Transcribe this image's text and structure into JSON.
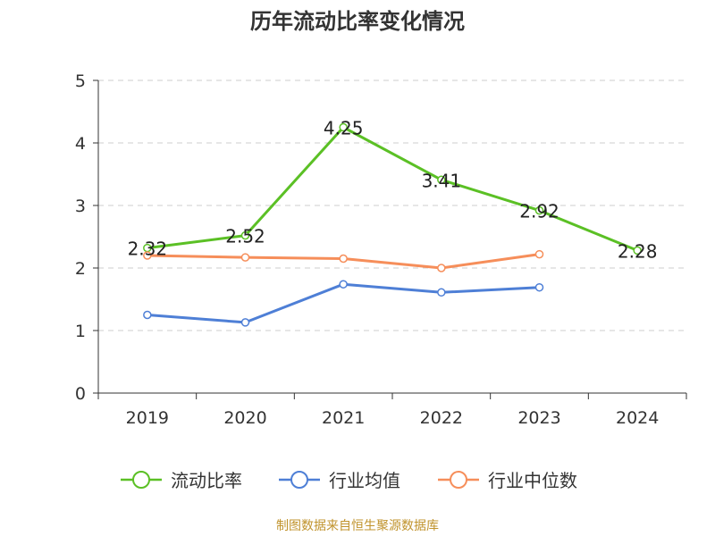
{
  "chart_data": {
    "type": "line",
    "title": "历年流动比率变化情况",
    "categories": [
      "2019",
      "2020",
      "2021",
      "2022",
      "2023",
      "2024"
    ],
    "ylim": [
      0,
      5
    ],
    "yticks": [
      0,
      1,
      2,
      3,
      4,
      5
    ],
    "grid": true,
    "legend_position": "bottom",
    "series": [
      {
        "name": "流动比率",
        "values": [
          2.32,
          2.52,
          4.25,
          3.41,
          2.92,
          2.28
        ],
        "labels": [
          "2.32",
          "2.52",
          "4.25",
          "3.41",
          "2.92",
          "2.28"
        ],
        "color": "#5bc025",
        "show_labels": true
      },
      {
        "name": "行业均值",
        "values": [
          1.25,
          1.13,
          1.74,
          1.61,
          1.69,
          null
        ],
        "color": "#4e7fd6",
        "show_labels": false
      },
      {
        "name": "行业中位数",
        "values": [
          2.2,
          2.17,
          2.15,
          2.0,
          2.22,
          null
        ],
        "color": "#f68e5a",
        "show_labels": false
      }
    ]
  },
  "footer": {
    "source": "制图数据来自恒生聚源数据库"
  }
}
